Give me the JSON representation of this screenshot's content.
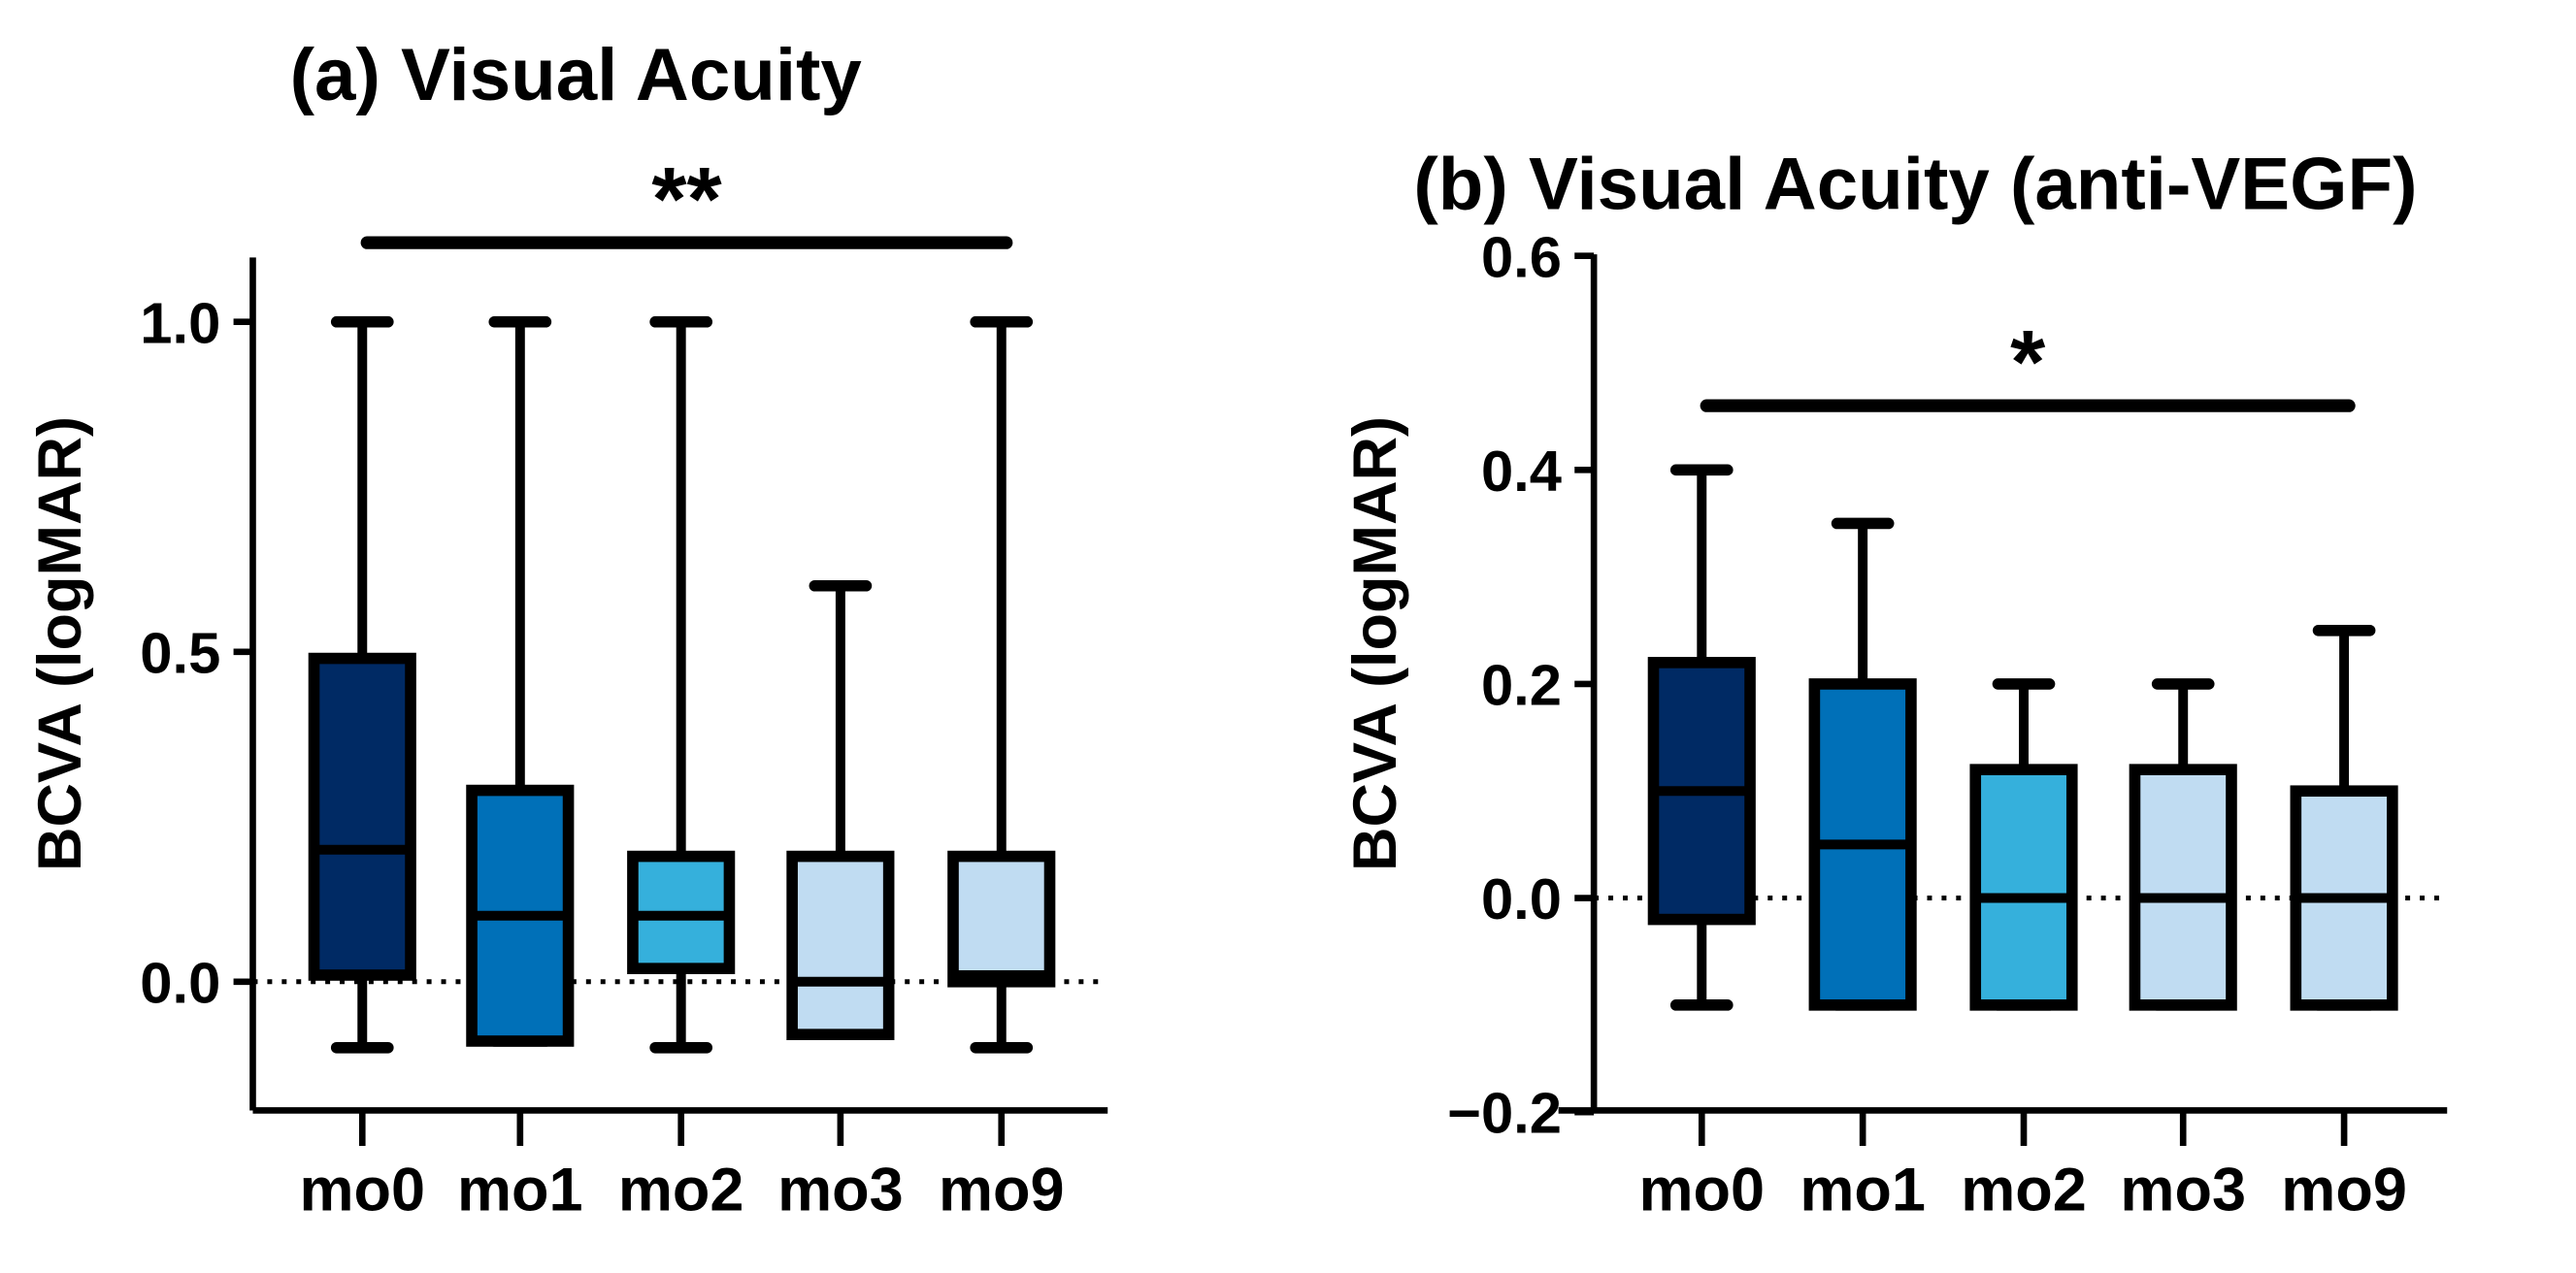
{
  "chart_data": [
    {
      "type": "box",
      "title": "(a)  Visual Acuity",
      "ylabel": "BCVA (logMAR)",
      "xlabel": "",
      "ylim": [
        -0.2,
        1.1
      ],
      "yticks": [
        0.0,
        0.5,
        1.0
      ],
      "ytick_labels": [
        "0.0",
        "0.5",
        "1.0"
      ],
      "reference_line": 0.0,
      "categories": [
        "mo0",
        "mo1",
        "mo2",
        "mo3",
        "mo9"
      ],
      "colors": [
        "#002a64",
        "#0070b8",
        "#35b0dc",
        "#c0dcf2",
        "#c0dcf2"
      ],
      "boxes": [
        {
          "min": -0.1,
          "q1": 0.01,
          "median": 0.2,
          "q3": 0.49,
          "max": 1.0
        },
        {
          "min": -0.09,
          "q1": -0.09,
          "median": 0.1,
          "q3": 0.29,
          "max": 1.0
        },
        {
          "min": -0.1,
          "q1": 0.02,
          "median": 0.1,
          "q3": 0.19,
          "max": 1.0
        },
        {
          "min": -0.08,
          "q1": -0.08,
          "median": 0.0,
          "q3": 0.19,
          "max": 0.6
        },
        {
          "min": -0.1,
          "q1": 0.0,
          "median": 0.01,
          "q3": 0.19,
          "max": 1.0
        }
      ],
      "significance": {
        "label": "**",
        "from": "mo0",
        "to": "mo9",
        "level": 1.12
      }
    },
    {
      "type": "box",
      "title": "(b) Visual Acuity (anti-VEGF)",
      "ylabel": "BCVA (logMAR)",
      "xlabel": "",
      "ylim": [
        -0.2,
        0.6
      ],
      "yticks": [
        -0.2,
        0.0,
        0.2,
        0.4,
        0.6
      ],
      "ytick_labels": [
        "−0.2",
        "0.0",
        "0.2",
        "0.4",
        "0.6"
      ],
      "reference_line": 0.0,
      "categories": [
        "mo0",
        "mo1",
        "mo2",
        "mo3",
        "mo9"
      ],
      "colors": [
        "#002a64",
        "#0070b8",
        "#35b0dc",
        "#c0dcf2",
        "#c0dcf2"
      ],
      "boxes": [
        {
          "min": -0.1,
          "q1": -0.02,
          "median": 0.1,
          "q3": 0.22,
          "max": 0.4
        },
        {
          "min": -0.1,
          "q1": -0.1,
          "median": 0.05,
          "q3": 0.2,
          "max": 0.35
        },
        {
          "min": -0.1,
          "q1": -0.1,
          "median": 0.0,
          "q3": 0.12,
          "max": 0.2
        },
        {
          "min": -0.1,
          "q1": -0.1,
          "median": 0.0,
          "q3": 0.12,
          "max": 0.2
        },
        {
          "min": -0.1,
          "q1": -0.1,
          "median": 0.0,
          "q3": 0.1,
          "max": 0.25
        }
      ],
      "significance": {
        "label": "*",
        "from": "mo0",
        "to": "mo9",
        "level": 0.46
      }
    }
  ]
}
